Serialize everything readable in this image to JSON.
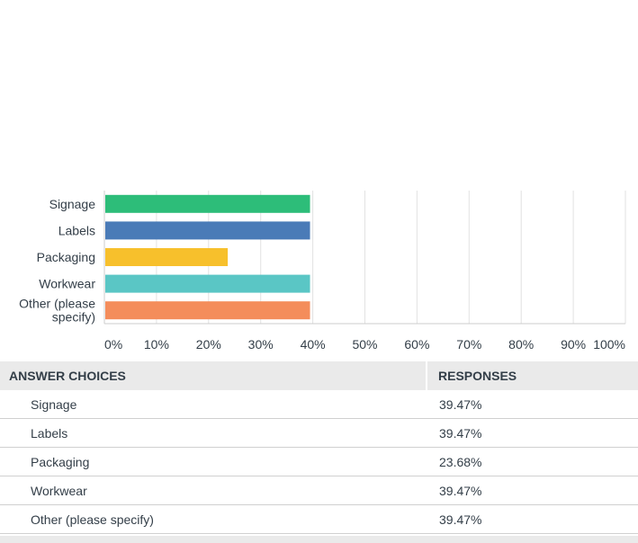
{
  "chart_data": {
    "type": "bar",
    "orientation": "horizontal",
    "categories": [
      "Signage",
      "Labels",
      "Packaging",
      "Workwear",
      "Other (please specify)"
    ],
    "category_tick_labels": [
      [
        "Signage"
      ],
      [
        "Labels"
      ],
      [
        "Packaging"
      ],
      [
        "Workwear"
      ],
      [
        "Other (please",
        "specify)"
      ]
    ],
    "values": [
      39.47,
      39.47,
      23.68,
      39.47,
      39.47
    ],
    "colors": [
      "#2dbd79",
      "#4a7bb7",
      "#f7c02c",
      "#5ac6c5",
      "#f48d5b"
    ],
    "xlim": [
      0,
      100
    ],
    "x_ticks": [
      "0%",
      "10%",
      "20%",
      "30%",
      "40%",
      "50%",
      "60%",
      "70%",
      "80%",
      "90%",
      "100%"
    ],
    "grid": "vertical"
  },
  "table": {
    "headers": {
      "choice": "ANSWER CHOICES",
      "responses": "RESPONSES"
    },
    "rows": [
      {
        "choice": "Signage",
        "response": "39.47%"
      },
      {
        "choice": "Labels",
        "response": "39.47%"
      },
      {
        "choice": "Packaging",
        "response": "23.68%"
      },
      {
        "choice": "Workwear",
        "response": "39.47%"
      },
      {
        "choice": "Other (please specify)",
        "response": "39.47%"
      }
    ]
  }
}
